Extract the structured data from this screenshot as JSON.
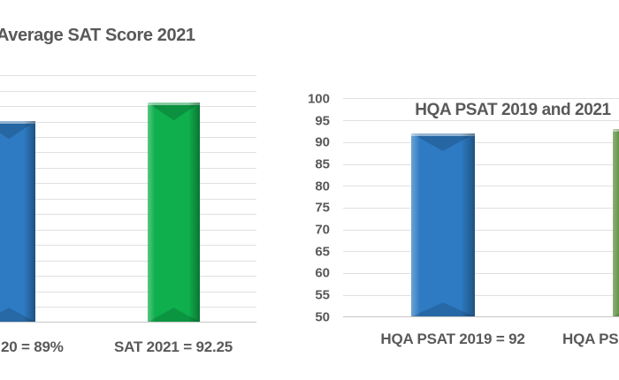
{
  "colors": {
    "background": "#FFFFFF",
    "text": "#595959",
    "gridline": "#E0E0E0",
    "axis_line": "#C6C6C6",
    "bar_blue": "#2E7BC3",
    "bar_green_bright": "#0FAF4D",
    "bar_green_olive": "#5B8E3E"
  },
  "chart_data": [
    {
      "type": "bar",
      "title": "Average SAT Score 2021",
      "categories": [
        "20 = 89%",
        "SAT 2021 = 92.25"
      ],
      "values": [
        89,
        92.25
      ],
      "bar_colors": [
        "#2E7BC3",
        "#0FAF4D"
      ],
      "xlabel": "",
      "ylabel": "",
      "ylim": null,
      "grid": true,
      "legend": false,
      "cropped_edge": "left"
    },
    {
      "type": "bar",
      "title": "HQA PSAT 2019 and 2021",
      "categories": [
        "HQA PSAT 2019 = 92",
        "HQA PSA"
      ],
      "values": [
        92,
        93
      ],
      "yticks": [
        100,
        95,
        90,
        85,
        80,
        75,
        70,
        65,
        60,
        55,
        50
      ],
      "ylim": [
        50,
        100
      ],
      "bar_colors": [
        "#2E7BC3",
        "#5B8E3E"
      ],
      "xlabel": "",
      "ylabel": "",
      "grid": true,
      "legend": false,
      "cropped_edge": "right"
    }
  ]
}
